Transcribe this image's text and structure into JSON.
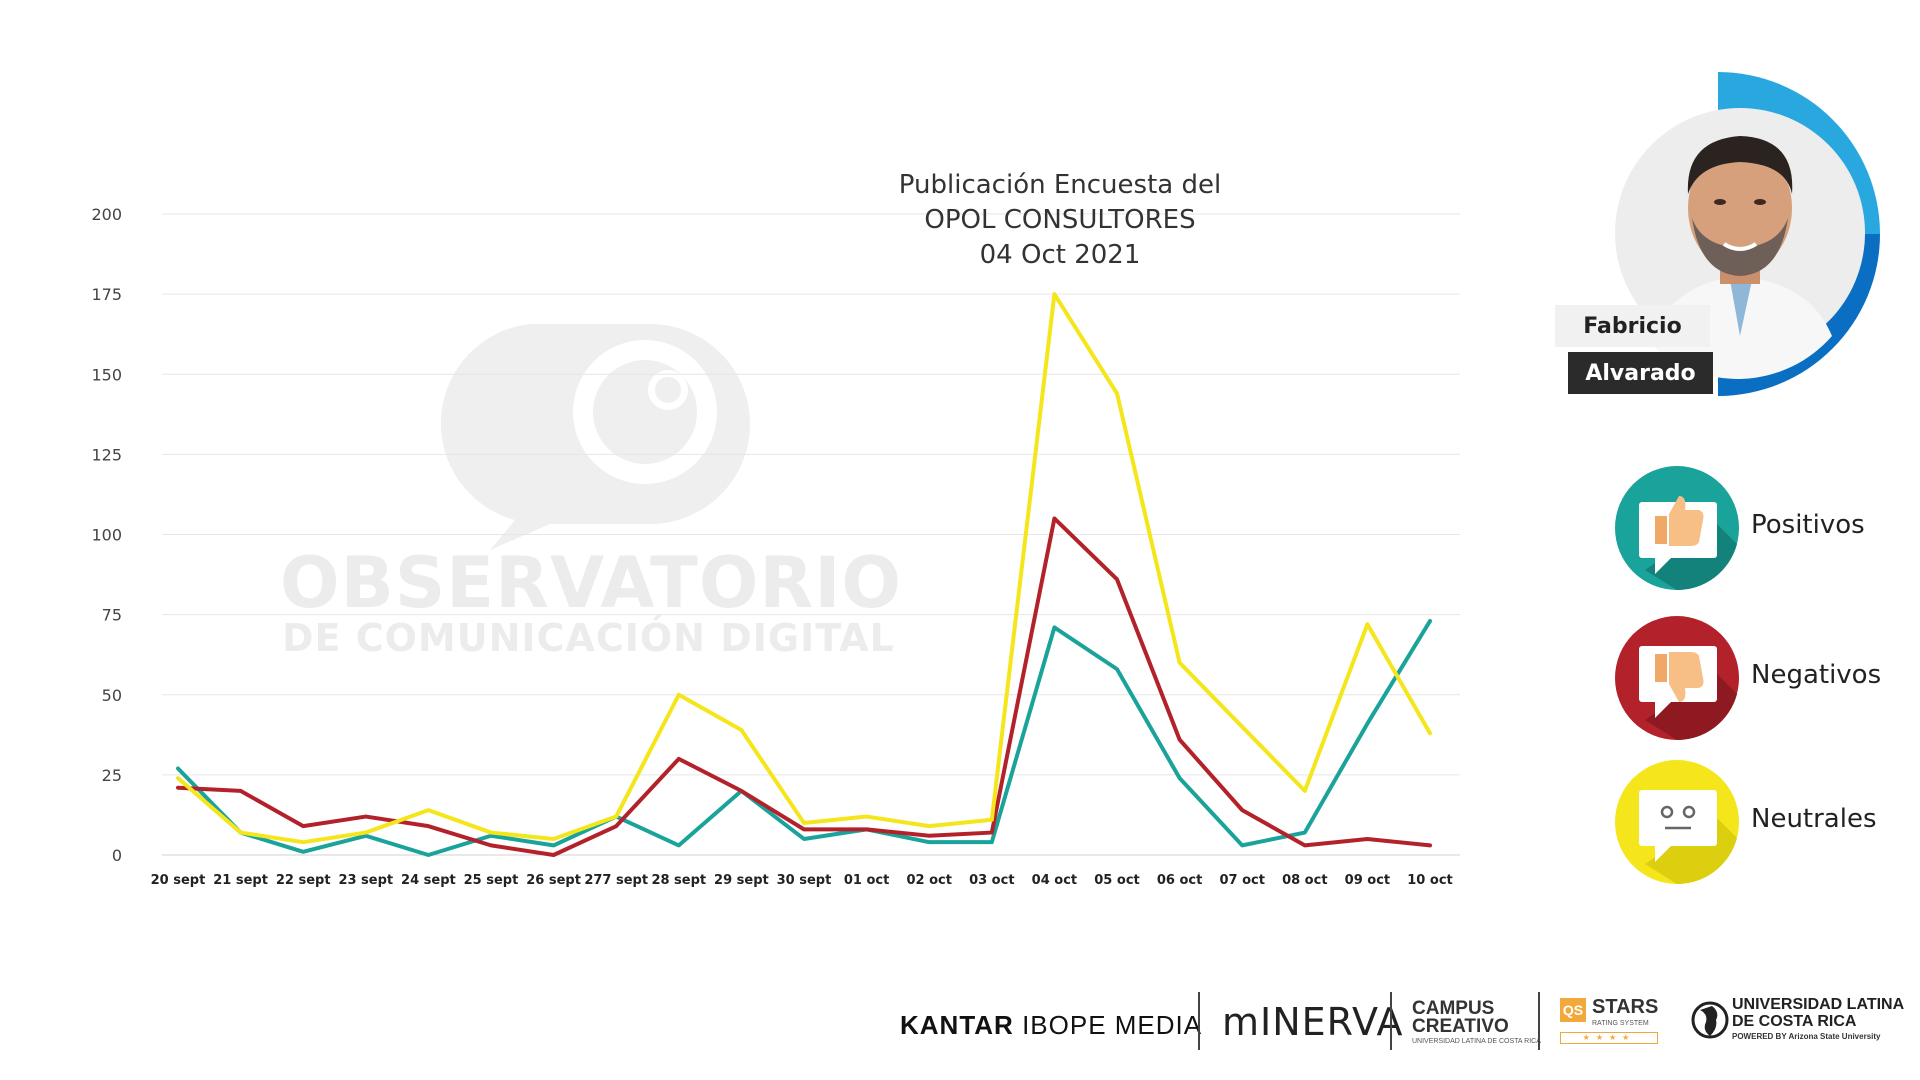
{
  "annotation": {
    "line1": "Publicación Encuesta del",
    "line2": "OPOL CONSULTORES",
    "line3": "04 Oct 2021"
  },
  "watermark": {
    "line1": "OBSERVATORIO",
    "line2": "DE COMUNICACIÓN DIGITAL"
  },
  "profile": {
    "first_name": "Fabricio",
    "last_name": "Alvarado",
    "ring_colors": [
      "#29a8e0",
      "#0a6fc2"
    ]
  },
  "legend": [
    {
      "label": "Positivos",
      "color": "#1aa39a",
      "icon": "thumbs-up-icon"
    },
    {
      "label": "Negativos",
      "color": "#b3222b",
      "icon": "thumbs-down-icon"
    },
    {
      "label": "Neutrales",
      "color": "#f4e61a",
      "icon": "neutral-face-icon"
    }
  ],
  "footer": {
    "kantar_bold": "KANTAR",
    "kantar_rest": " IBOPE MEDIA",
    "minerva": "mINERVA",
    "campus_line1": "CAMPUS",
    "campus_line2": "CREATIVO",
    "campus_sub": "UNIVERSIDAD LATINA DE COSTA RICA",
    "qs_mark": "QS",
    "qs_stars": "STARS",
    "qs_sub": "RATING SYSTEM",
    "qs_rating": "★★★★",
    "ulatina_line1": "UNIVERSIDAD LATINA",
    "ulatina_line2": "DE COSTA RICA",
    "ulatina_sub": "POWERED BY Arizona State University"
  },
  "chart_data": {
    "type": "line",
    "categories": [
      "20 sept",
      "21 sept",
      "22 sept",
      "23 sept",
      "24 sept",
      "25 sept",
      "26 sept",
      "277 sept",
      "28 sept",
      "29 sept",
      "30 sept",
      "01 oct",
      "02 oct",
      "03 oct",
      "04 oct",
      "05 oct",
      "06 oct",
      "07 oct",
      "08 oct",
      "09 oct",
      "10 oct"
    ],
    "y_ticks": [
      0,
      25,
      50,
      75,
      100,
      125,
      150,
      175,
      200
    ],
    "ylim": [
      0,
      200
    ],
    "grid": true,
    "series": [
      {
        "name": "Positivos",
        "color": "#1aa39a",
        "values": [
          27,
          7,
          1,
          6,
          0,
          6,
          3,
          12,
          3,
          20,
          5,
          8,
          4,
          4,
          71,
          58,
          24,
          3,
          7,
          41,
          73
        ]
      },
      {
        "name": "Negativos",
        "color": "#b3222b",
        "values": [
          21,
          20,
          9,
          12,
          9,
          3,
          0,
          9,
          30,
          20,
          8,
          8,
          6,
          7,
          105,
          86,
          36,
          14,
          3,
          5,
          3
        ]
      },
      {
        "name": "Neutrales",
        "color": "#f4e61a",
        "values": [
          24,
          7,
          4,
          7,
          14,
          7,
          5,
          12,
          50,
          39,
          10,
          12,
          9,
          11,
          175,
          144,
          60,
          40,
          20,
          72,
          38
        ]
      }
    ]
  }
}
